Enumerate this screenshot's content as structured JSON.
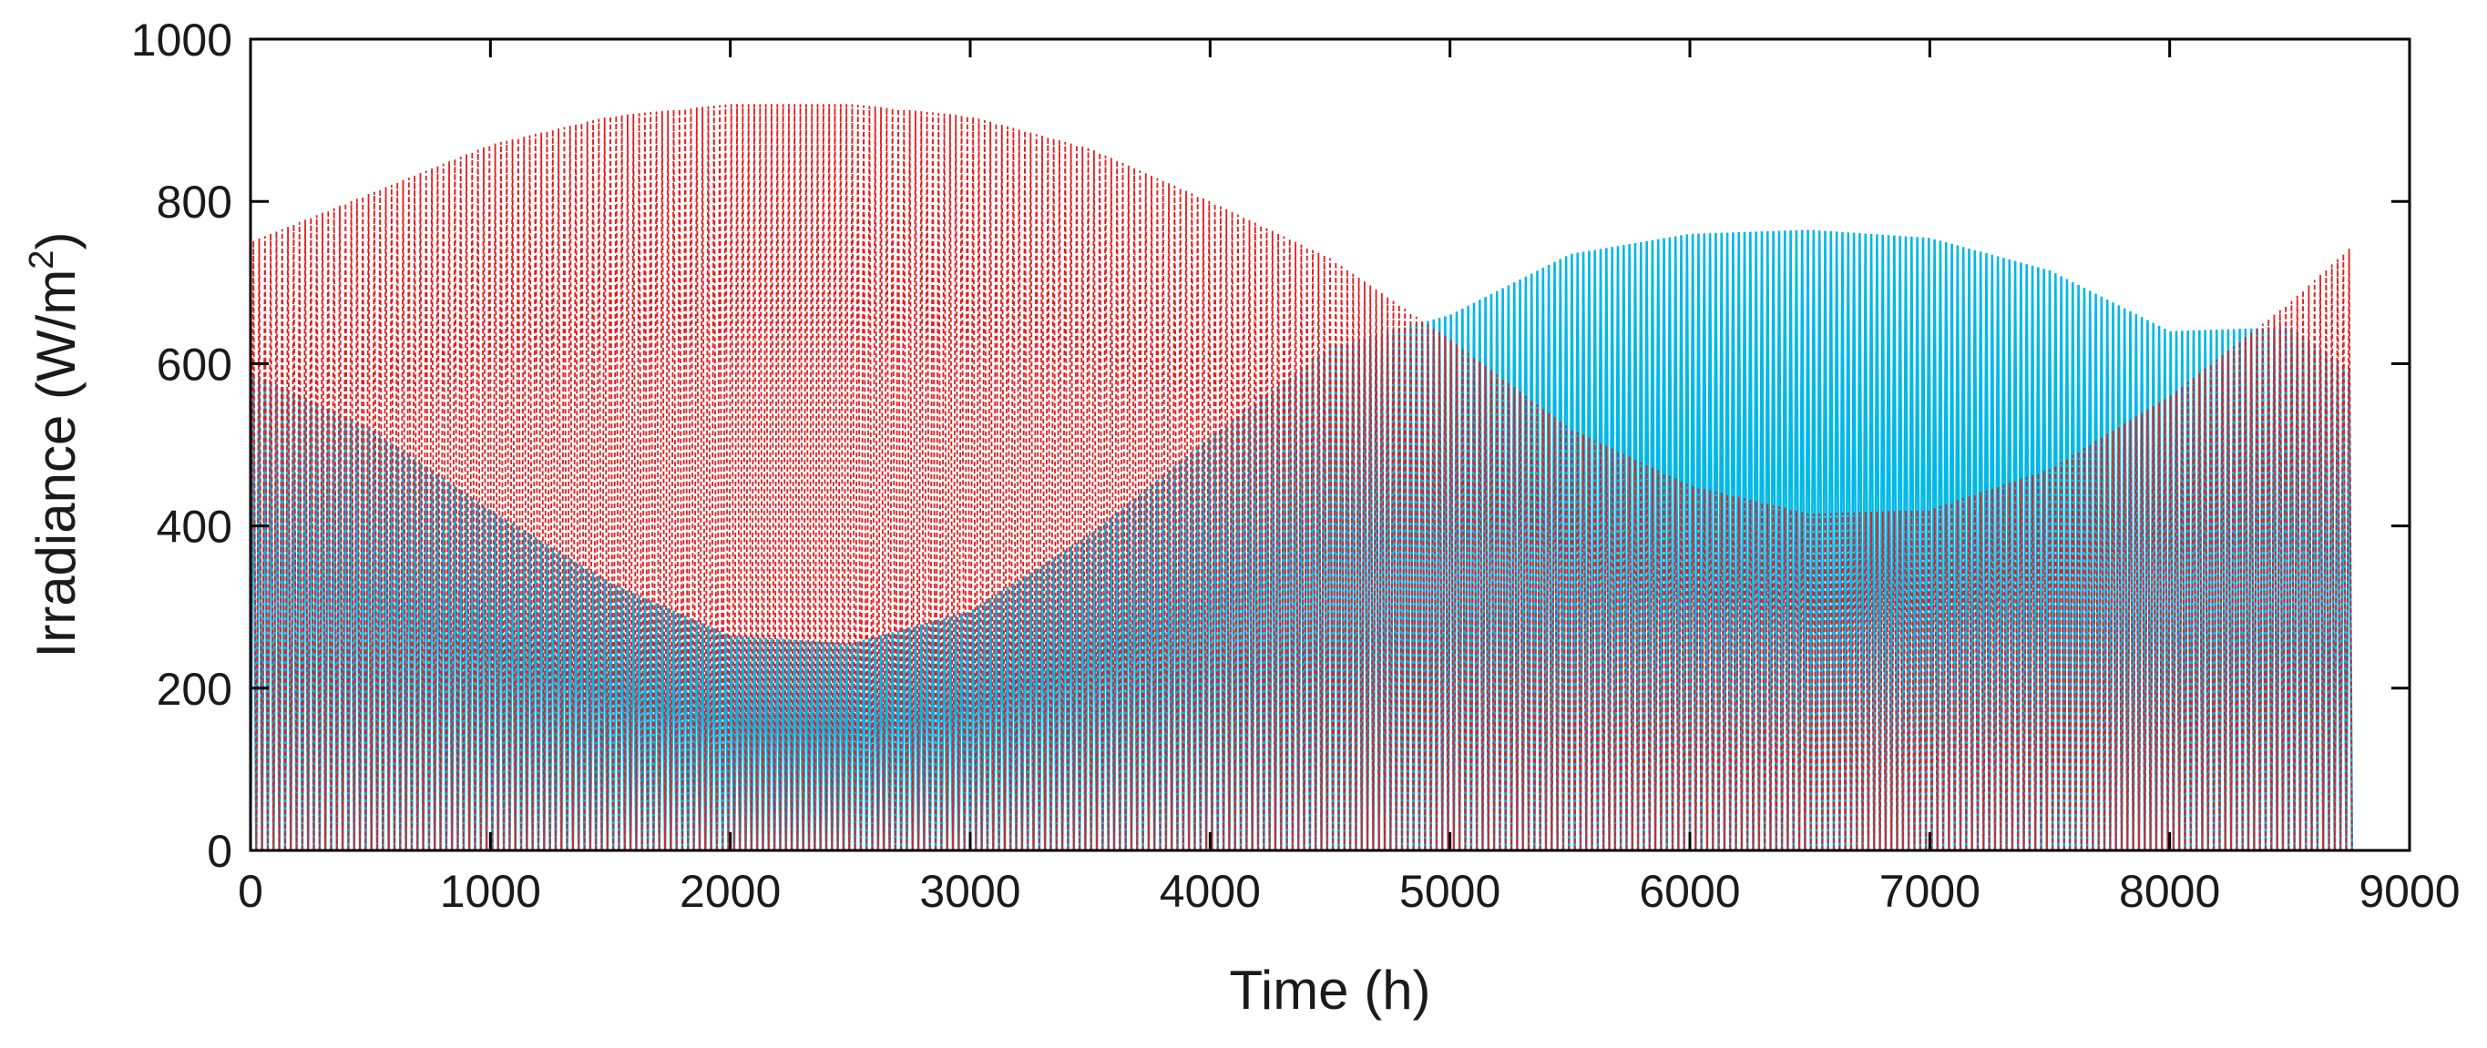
{
  "chart_data": {
    "type": "area",
    "title": "",
    "xlabel": "Time (h)",
    "ylabel": {
      "prefix": "Irradiance (W/m",
      "superscript": "2",
      "suffix": ")"
    },
    "xlim": [
      0,
      9000
    ],
    "ylim": [
      0,
      1000
    ],
    "xticks": [
      0,
      1000,
      2000,
      3000,
      4000,
      5000,
      6000,
      7000,
      8000,
      9000
    ],
    "yticks": [
      0,
      200,
      400,
      600,
      800,
      1000
    ],
    "grid": false,
    "legend": null,
    "day_hours": 24,
    "series": [
      {
        "name": "blue",
        "color": "#00b8e8",
        "style": "daily oscillation between 0 and an upper envelope",
        "envelope": {
          "x": [
            0,
            500,
            1000,
            1500,
            2000,
            2500,
            3000,
            3500,
            4000,
            4500,
            5000,
            5500,
            6000,
            6500,
            7000,
            7500,
            8000,
            8500,
            8760
          ],
          "upper": [
            590,
            520,
            420,
            330,
            265,
            255,
            295,
            390,
            510,
            620,
            660,
            735,
            760,
            765,
            755,
            715,
            640,
            645,
            590
          ]
        }
      },
      {
        "name": "red",
        "color": "#e81c1c",
        "style": "dotted daily oscillation between 0 and an upper envelope",
        "envelope": {
          "x": [
            0,
            500,
            1000,
            1500,
            2000,
            2500,
            3000,
            3500,
            4000,
            4500,
            5000,
            5500,
            6000,
            6500,
            7000,
            7500,
            8000,
            8500,
            8760
          ],
          "upper": [
            750,
            810,
            870,
            905,
            920,
            920,
            905,
            865,
            800,
            730,
            630,
            520,
            450,
            415,
            420,
            470,
            560,
            675,
            745
          ]
        }
      }
    ]
  }
}
